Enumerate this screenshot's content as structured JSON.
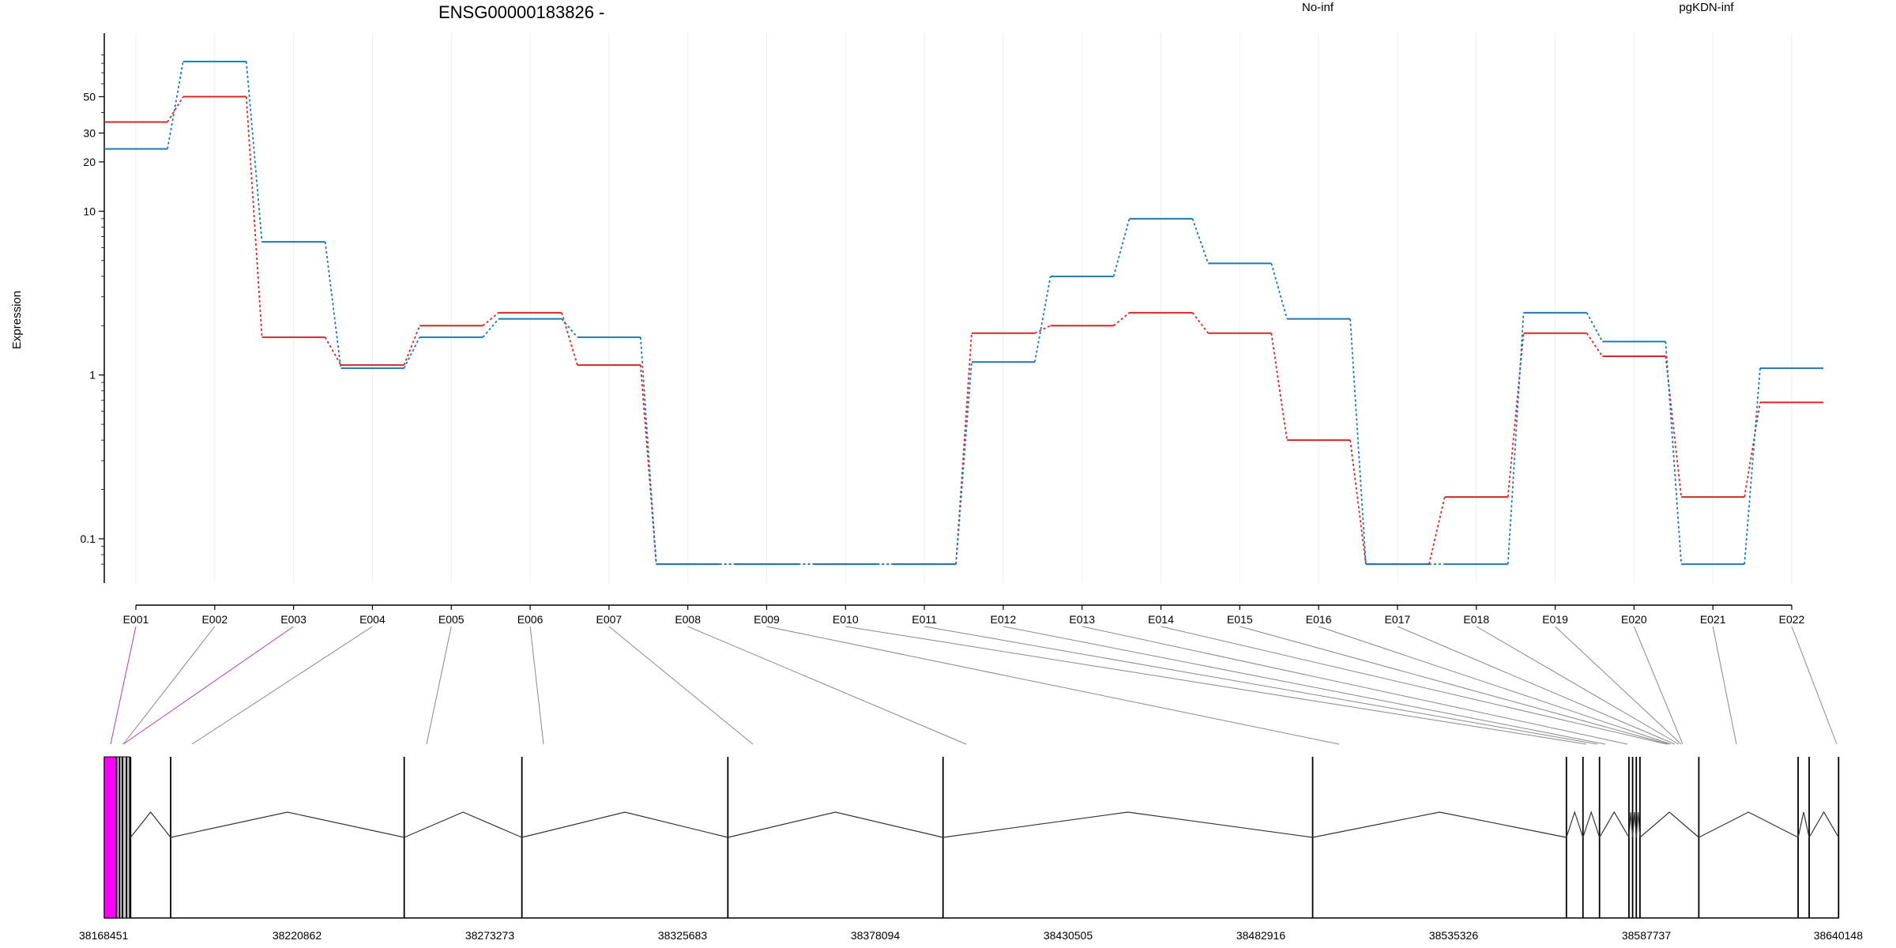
{
  "chart_data": {
    "type": "line",
    "title": "ENSG00000183826 -",
    "ylabel": "Expression",
    "xlabel": "",
    "y_scale": "log",
    "ylim": [
      0.06,
      100
    ],
    "y_ticks": [
      "0.1",
      "1",
      "10",
      "20",
      "30",
      "50"
    ],
    "y_tick_values": [
      0.1,
      1,
      10,
      20,
      30,
      50
    ],
    "grid": "vertical-faint",
    "legend_placement": "top",
    "categories": [
      "E001",
      "E002",
      "E003",
      "E004",
      "E005",
      "E006",
      "E007",
      "E008",
      "E009",
      "E010",
      "E011",
      "E012",
      "E013",
      "E014",
      "E015",
      "E016",
      "E017",
      "E018",
      "E019",
      "E020",
      "E021",
      "E022"
    ],
    "series": [
      {
        "name": "No-inf",
        "color": "#d62728",
        "values": [
          35,
          50,
          1.7,
          1.15,
          2.0,
          2.4,
          1.15,
          0.07,
          0.07,
          0.07,
          0.07,
          1.8,
          2.0,
          2.4,
          1.8,
          0.4,
          0.07,
          0.18,
          1.8,
          1.3,
          0.18,
          0.68
        ]
      },
      {
        "name": "pgKDN-inf",
        "color": "#1f77b4",
        "values": [
          24,
          82,
          6.5,
          1.1,
          1.7,
          2.2,
          1.7,
          0.07,
          0.07,
          0.07,
          0.07,
          1.2,
          4.0,
          9.0,
          4.8,
          2.2,
          0.07,
          0.07,
          2.4,
          1.6,
          0.07,
          1.1
        ]
      }
    ],
    "gene_track": {
      "genomic_ticks": [
        "38168451",
        "38220862",
        "38273273",
        "38325683",
        "38378094",
        "38430505",
        "38482916",
        "38535326",
        "38587737",
        "38640148"
      ],
      "range": [
        38168451,
        38640148
      ],
      "exon_positions": [
        38168451,
        38170500,
        38171800,
        38172600,
        38173400,
        38174500,
        38175600,
        38186500,
        38250000,
        38282000,
        38338000,
        38396500,
        38497000,
        38566000,
        38570500,
        38575000,
        38583000,
        38584000,
        38585000,
        38586000,
        38602000,
        38629000,
        38632000,
        38640000
      ],
      "highlight_color": "#ff00ff",
      "exon_fill": "#c8c8c8"
    }
  }
}
